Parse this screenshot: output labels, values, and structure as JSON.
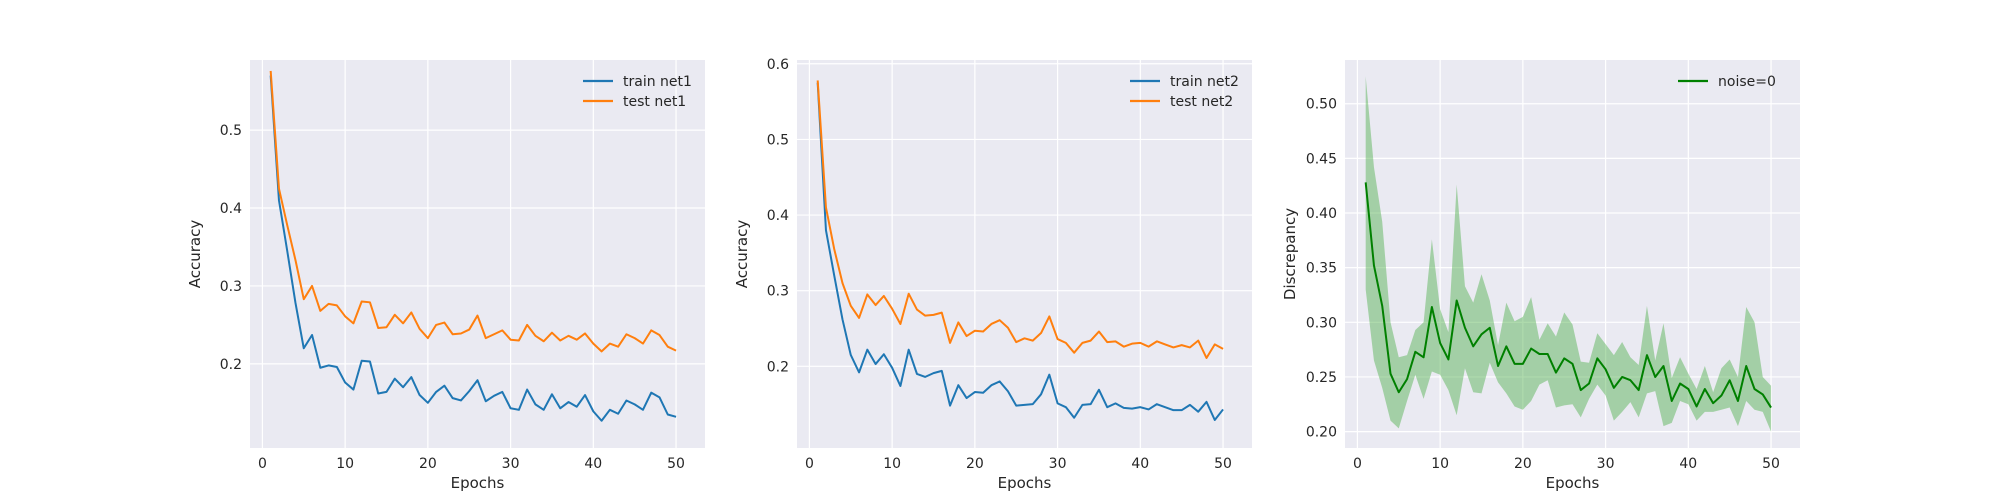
{
  "chart_data": [
    {
      "type": "line",
      "xlabel": "Epochs",
      "ylabel": "Accuracy",
      "xlim": [
        -1.5,
        53.5
      ],
      "ylim": [
        0.092,
        0.59
      ],
      "xticks": [
        0,
        10,
        20,
        30,
        40,
        50
      ],
      "yticks": [
        0.2,
        0.3,
        0.4,
        0.5
      ],
      "grid": true,
      "legend_position": "top-right",
      "x": [
        1,
        2,
        3,
        4,
        5,
        6,
        7,
        8,
        9,
        10,
        11,
        12,
        13,
        14,
        15,
        16,
        17,
        18,
        19,
        20,
        21,
        22,
        23,
        24,
        25,
        26,
        27,
        28,
        29,
        30,
        31,
        32,
        33,
        34,
        35,
        36,
        37,
        38,
        39,
        40,
        41,
        42,
        43,
        44,
        45,
        46,
        47,
        48,
        49,
        50
      ],
      "series": [
        {
          "name": "train net1",
          "color": "#1f77b4",
          "values": [
            0.57,
            0.41,
            0.345,
            0.278,
            0.22,
            0.237,
            0.195,
            0.198,
            0.196,
            0.176,
            0.167,
            0.204,
            0.203,
            0.162,
            0.164,
            0.181,
            0.17,
            0.183,
            0.16,
            0.15,
            0.164,
            0.172,
            0.156,
            0.153,
            0.165,
            0.179,
            0.152,
            0.159,
            0.164,
            0.143,
            0.141,
            0.167,
            0.148,
            0.141,
            0.161,
            0.143,
            0.151,
            0.145,
            0.16,
            0.139,
            0.127,
            0.141,
            0.136,
            0.153,
            0.148,
            0.141,
            0.163,
            0.157,
            0.135,
            0.132
          ]
        },
        {
          "name": "test net1",
          "color": "#ff7f0e",
          "values": [
            0.576,
            0.425,
            0.378,
            0.333,
            0.283,
            0.3,
            0.268,
            0.277,
            0.275,
            0.261,
            0.252,
            0.28,
            0.279,
            0.246,
            0.247,
            0.263,
            0.252,
            0.266,
            0.245,
            0.233,
            0.25,
            0.253,
            0.238,
            0.239,
            0.244,
            0.262,
            0.233,
            0.238,
            0.243,
            0.231,
            0.23,
            0.25,
            0.236,
            0.229,
            0.24,
            0.23,
            0.236,
            0.231,
            0.239,
            0.226,
            0.216,
            0.226,
            0.222,
            0.238,
            0.233,
            0.226,
            0.243,
            0.237,
            0.222,
            0.217
          ]
        }
      ]
    },
    {
      "type": "line",
      "xlabel": "Epochs",
      "ylabel": "Accuracy",
      "xlim": [
        -1.5,
        53.5
      ],
      "ylim": [
        0.092,
        0.605
      ],
      "xticks": [
        0,
        10,
        20,
        30,
        40,
        50
      ],
      "yticks": [
        0.2,
        0.3,
        0.4,
        0.5,
        0.6
      ],
      "grid": true,
      "legend_position": "top-right",
      "x": [
        1,
        2,
        3,
        4,
        5,
        6,
        7,
        8,
        9,
        10,
        11,
        12,
        13,
        14,
        15,
        16,
        17,
        18,
        19,
        20,
        21,
        22,
        23,
        24,
        25,
        26,
        27,
        28,
        29,
        30,
        31,
        32,
        33,
        34,
        35,
        36,
        37,
        38,
        39,
        40,
        41,
        42,
        43,
        44,
        45,
        46,
        47,
        48,
        49,
        50
      ],
      "series": [
        {
          "name": "train net2",
          "color": "#1f77b4",
          "values": [
            0.575,
            0.38,
            0.32,
            0.262,
            0.215,
            0.192,
            0.222,
            0.203,
            0.216,
            0.198,
            0.174,
            0.222,
            0.19,
            0.186,
            0.191,
            0.194,
            0.148,
            0.175,
            0.158,
            0.166,
            0.165,
            0.175,
            0.18,
            0.167,
            0.148,
            0.149,
            0.15,
            0.163,
            0.189,
            0.151,
            0.146,
            0.132,
            0.149,
            0.15,
            0.169,
            0.146,
            0.151,
            0.145,
            0.144,
            0.146,
            0.143,
            0.15,
            0.146,
            0.142,
            0.142,
            0.149,
            0.14,
            0.153,
            0.129,
            0.143
          ]
        },
        {
          "name": "test net2",
          "color": "#ff7f0e",
          "values": [
            0.578,
            0.41,
            0.355,
            0.31,
            0.28,
            0.264,
            0.295,
            0.281,
            0.293,
            0.276,
            0.256,
            0.296,
            0.275,
            0.267,
            0.268,
            0.271,
            0.231,
            0.258,
            0.24,
            0.247,
            0.246,
            0.256,
            0.261,
            0.251,
            0.232,
            0.237,
            0.234,
            0.244,
            0.266,
            0.236,
            0.231,
            0.218,
            0.231,
            0.234,
            0.246,
            0.232,
            0.233,
            0.226,
            0.23,
            0.231,
            0.226,
            0.233,
            0.229,
            0.225,
            0.228,
            0.225,
            0.234,
            0.211,
            0.229,
            0.223
          ]
        }
      ]
    },
    {
      "type": "line",
      "xlabel": "Epochs",
      "ylabel": "Discrepancy",
      "xlim": [
        -1.5,
        53.5
      ],
      "ylim": [
        0.185,
        0.54
      ],
      "xticks": [
        0,
        10,
        20,
        30,
        40,
        50
      ],
      "yticks": [
        0.2,
        0.25,
        0.3,
        0.35,
        0.4,
        0.45,
        0.5
      ],
      "ytick_labels": [
        "0.20",
        "0.25",
        "0.30",
        "0.35",
        "0.40",
        "0.45",
        "0.50"
      ],
      "grid": true,
      "legend_position": "top-right",
      "x": [
        1,
        2,
        3,
        4,
        5,
        6,
        7,
        8,
        9,
        10,
        11,
        12,
        13,
        14,
        15,
        16,
        17,
        18,
        19,
        20,
        21,
        22,
        23,
        24,
        25,
        26,
        27,
        28,
        29,
        30,
        31,
        32,
        33,
        34,
        35,
        36,
        37,
        38,
        39,
        40,
        41,
        42,
        43,
        44,
        45,
        46,
        47,
        48,
        49,
        50
      ],
      "series": [
        {
          "name": "noise=0",
          "color": "#008000",
          "band_color": "#4daf4a",
          "values": [
            0.428,
            0.352,
            0.315,
            0.253,
            0.236,
            0.248,
            0.273,
            0.268,
            0.314,
            0.281,
            0.266,
            0.32,
            0.295,
            0.278,
            0.289,
            0.295,
            0.26,
            0.278,
            0.262,
            0.262,
            0.276,
            0.271,
            0.271,
            0.254,
            0.267,
            0.262,
            0.238,
            0.244,
            0.267,
            0.257,
            0.24,
            0.25,
            0.247,
            0.238,
            0.27,
            0.25,
            0.26,
            0.228,
            0.244,
            0.239,
            0.223,
            0.239,
            0.226,
            0.233,
            0.247,
            0.228,
            0.26,
            0.239,
            0.234,
            0.222
          ],
          "lower": [
            0.33,
            0.265,
            0.24,
            0.21,
            0.203,
            0.228,
            0.252,
            0.23,
            0.255,
            0.252,
            0.238,
            0.215,
            0.258,
            0.236,
            0.235,
            0.263,
            0.245,
            0.235,
            0.223,
            0.22,
            0.228,
            0.243,
            0.247,
            0.222,
            0.224,
            0.225,
            0.213,
            0.23,
            0.243,
            0.233,
            0.21,
            0.218,
            0.227,
            0.213,
            0.235,
            0.237,
            0.205,
            0.208,
            0.228,
            0.225,
            0.21,
            0.218,
            0.218,
            0.22,
            0.222,
            0.205,
            0.228,
            0.22,
            0.218,
            0.2
          ],
          "upper": [
            0.525,
            0.442,
            0.392,
            0.3,
            0.268,
            0.27,
            0.293,
            0.3,
            0.376,
            0.312,
            0.291,
            0.426,
            0.333,
            0.318,
            0.344,
            0.32,
            0.279,
            0.318,
            0.301,
            0.305,
            0.323,
            0.284,
            0.299,
            0.287,
            0.309,
            0.298,
            0.264,
            0.263,
            0.29,
            0.28,
            0.27,
            0.282,
            0.268,
            0.261,
            0.315,
            0.265,
            0.299,
            0.249,
            0.268,
            0.253,
            0.239,
            0.26,
            0.236,
            0.258,
            0.266,
            0.25,
            0.314,
            0.3,
            0.25,
            0.242
          ]
        }
      ]
    }
  ]
}
